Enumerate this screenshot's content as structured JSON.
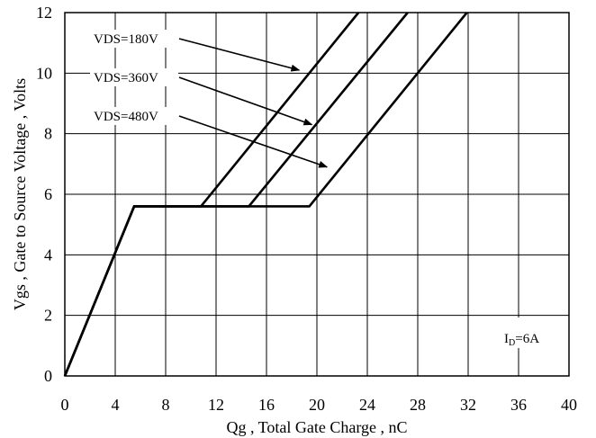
{
  "chart_data": {
    "type": "line",
    "title": "",
    "xlabel": "Qg , Total Gate Charge , nC",
    "ylabel": "Vgs , Gate to Source Voltage , Volts",
    "xlim": [
      0,
      40
    ],
    "ylim": [
      0,
      12
    ],
    "x_ticks": [
      0,
      4,
      8,
      12,
      16,
      20,
      24,
      28,
      32,
      36,
      40
    ],
    "y_ticks": [
      0,
      2,
      4,
      6,
      8,
      10,
      12
    ],
    "grid": true,
    "series": [
      {
        "name": "VDS=180V",
        "x": [
          0,
          5.5,
          10.8,
          23.3
        ],
        "y": [
          0,
          5.6,
          5.6,
          12
        ]
      },
      {
        "name": "VDS=360V",
        "x": [
          0,
          5.5,
          14.6,
          27.2
        ],
        "y": [
          0,
          5.6,
          5.6,
          12
        ]
      },
      {
        "name": "VDS=480V",
        "x": [
          0,
          5.5,
          19.4,
          31.9
        ],
        "y": [
          0,
          5.6,
          5.6,
          12
        ]
      }
    ],
    "annotations": [
      {
        "label": "VDS=180V",
        "arrow_to": [
          18.6,
          10.1
        ]
      },
      {
        "label": "VDS=360V",
        "arrow_to": [
          19.6,
          8.3
        ]
      },
      {
        "label": "VDS=480V",
        "arrow_to": [
          20.8,
          6.9
        ]
      }
    ],
    "condition_label": {
      "main": "I",
      "sub": "D",
      "rest": "=6A"
    }
  }
}
